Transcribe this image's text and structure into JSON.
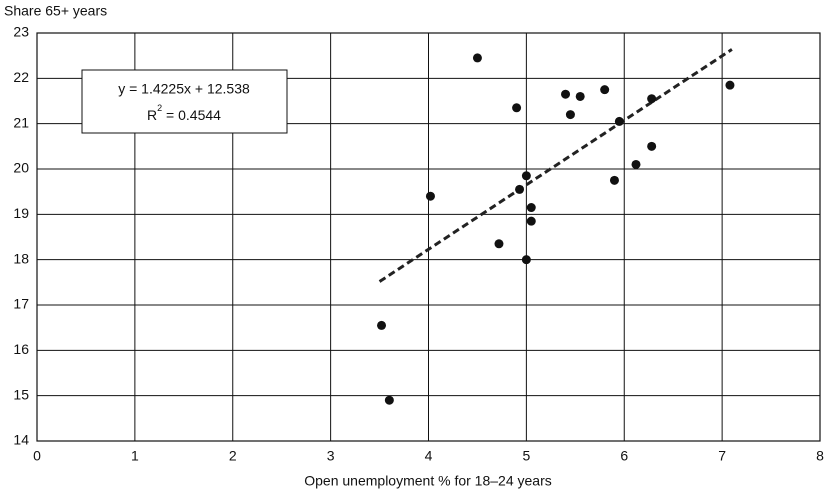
{
  "chart_data": {
    "type": "scatter",
    "title": "Share 65+ years",
    "x_label": "Open unemployment % for 18–24 years",
    "series": [
      {
        "name": null,
        "color": "#111111",
        "x": [
          4.5,
          4.9,
          5.4,
          5.45,
          5.55,
          5.8,
          5.95,
          6.28,
          7.08,
          4.02,
          4.93,
          5.0,
          5.05,
          5.05,
          4.72,
          5.0,
          5.9,
          6.12,
          6.28,
          3.52,
          3.6
        ],
        "values": [
          22.45,
          21.35,
          21.65,
          21.2,
          21.6,
          21.75,
          21.05,
          21.55,
          21.85,
          19.4,
          19.55,
          19.85,
          19.15,
          18.85,
          18.35,
          18.0,
          19.75,
          20.1,
          20.5,
          16.55,
          14.9
        ]
      }
    ],
    "trendline": {
      "x": [
        3.5,
        7.1
      ],
      "values": [
        17.517,
        22.638
      ],
      "color": "#222222"
    },
    "annotation": {
      "equation": "y = 1.4225x + 12.538",
      "r_prefix": "R",
      "r_exponent": "2",
      "r_rest": " = 0.4544"
    },
    "xlim": [
      0,
      8
    ],
    "xticks": [
      0,
      1,
      2,
      3,
      4,
      5,
      6,
      7,
      8
    ],
    "ylim": [
      14,
      23
    ],
    "yticks": [
      14,
      15,
      16,
      17,
      18,
      19,
      20,
      21,
      22,
      23
    ],
    "grid": true
  }
}
